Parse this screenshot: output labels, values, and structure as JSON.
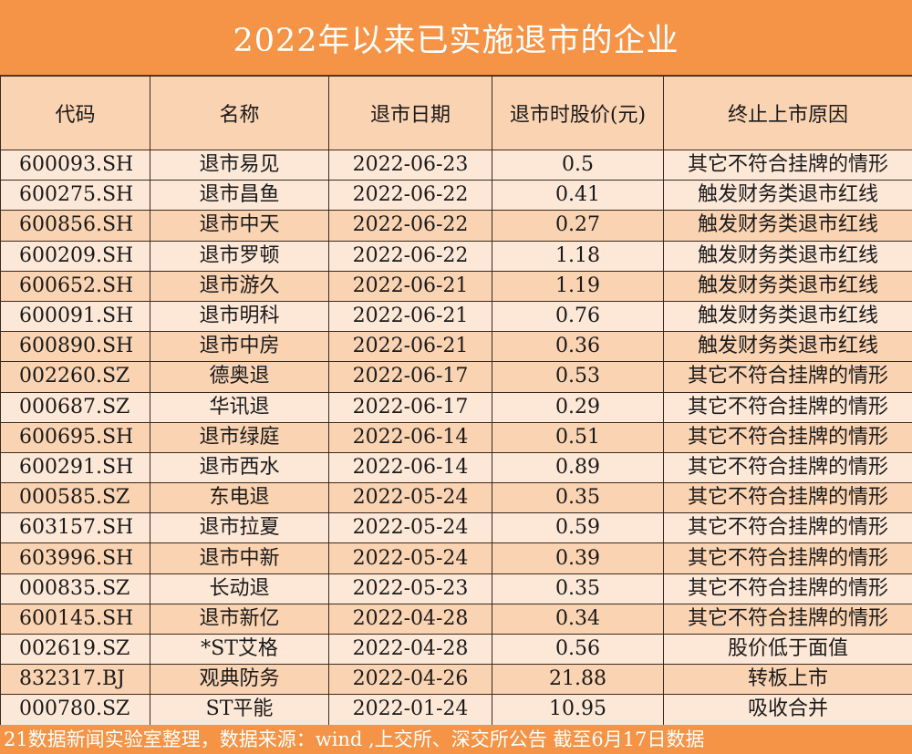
{
  "title": "2022年以来已实施退市的企业",
  "columns": [
    "代码",
    "名称",
    "退市日期",
    "退市时股价(元)",
    "终止上市原因"
  ],
  "rows": [
    {
      "code": "600093.SH",
      "name": "退市易见",
      "date": "2022-06-23",
      "price": "0.5",
      "reason": "其它不符合挂牌的情形",
      "band": "light"
    },
    {
      "code": "600275.SH",
      "name": "退市昌鱼",
      "date": "2022-06-22",
      "price": "0.41",
      "reason": "触发财务类退市红线",
      "band": "light"
    },
    {
      "code": "600856.SH",
      "name": "退市中天",
      "date": "2022-06-22",
      "price": "0.27",
      "reason": "触发财务类退市红线",
      "band": "dark"
    },
    {
      "code": "600209.SH",
      "name": "退市罗顿",
      "date": "2022-06-22",
      "price": "1.18",
      "reason": "触发财务类退市红线",
      "band": "light"
    },
    {
      "code": "600652.SH",
      "name": "退市游久",
      "date": "2022-06-21",
      "price": "1.19",
      "reason": "触发财务类退市红线",
      "band": "dark"
    },
    {
      "code": "600091.SH",
      "name": "退市明科",
      "date": "2022-06-21",
      "price": "0.76",
      "reason": "触发财务类退市红线",
      "band": "light"
    },
    {
      "code": "600890.SH",
      "name": "退市中房",
      "date": "2022-06-21",
      "price": "0.36",
      "reason": "触发财务类退市红线",
      "band": "dark"
    },
    {
      "code": "002260.SZ",
      "name": "德奥退",
      "date": "2022-06-17",
      "price": "0.53",
      "reason": "其它不符合挂牌的情形",
      "band": "dark"
    },
    {
      "code": "000687.SZ",
      "name": "华讯退",
      "date": "2022-06-17",
      "price": "0.29",
      "reason": "其它不符合挂牌的情形",
      "band": "light"
    },
    {
      "code": "600695.SH",
      "name": "退市绿庭",
      "date": "2022-06-14",
      "price": "0.51",
      "reason": "其它不符合挂牌的情形",
      "band": "dark"
    },
    {
      "code": "600291.SH",
      "name": "退市西水",
      "date": "2022-06-14",
      "price": "0.89",
      "reason": "其它不符合挂牌的情形",
      "band": "light"
    },
    {
      "code": "000585.SZ",
      "name": "东电退",
      "date": "2022-05-24",
      "price": "0.35",
      "reason": "其它不符合挂牌的情形",
      "band": "dark"
    },
    {
      "code": "603157.SH",
      "name": "退市拉夏",
      "date": "2022-05-24",
      "price": "0.59",
      "reason": "其它不符合挂牌的情形",
      "band": "light"
    },
    {
      "code": "603996.SH",
      "name": "退市中新",
      "date": "2022-05-24",
      "price": "0.39",
      "reason": "其它不符合挂牌的情形",
      "band": "dark"
    },
    {
      "code": "000835.SZ",
      "name": "长动退",
      "date": "2022-05-23",
      "price": "0.35",
      "reason": "其它不符合挂牌的情形",
      "band": "light"
    },
    {
      "code": "600145.SH",
      "name": "退市新亿",
      "date": "2022-04-28",
      "price": "0.34",
      "reason": "其它不符合挂牌的情形",
      "band": "dark"
    },
    {
      "code": "002619.SZ",
      "name": "*ST艾格",
      "date": "2022-04-28",
      "price": "0.56",
      "reason": "股价低于面值",
      "band": "light"
    },
    {
      "code": "832317.BJ",
      "name": "观典防务",
      "date": "2022-04-26",
      "price": "21.88",
      "reason": "转板上市",
      "band": "dark"
    },
    {
      "code": "000780.SZ",
      "name": "ST平能",
      "date": "2022-01-24",
      "price": "10.95",
      "reason": "吸收合并",
      "band": "light"
    }
  ],
  "footer": "21数据新闻实验室整理，数据来源：wind ,上交所、深交所公告 截至6月17日数据",
  "colors": {
    "header_orange": "#f59446",
    "band_dark": "#fad3b2",
    "band_light": "#fde8d8"
  }
}
